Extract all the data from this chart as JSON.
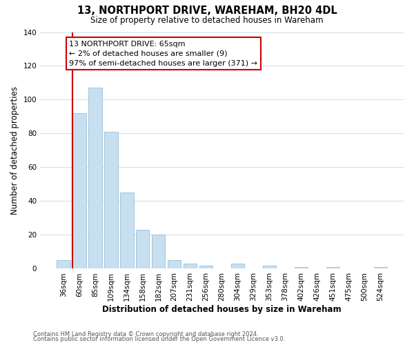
{
  "title": "13, NORTHPORT DRIVE, WAREHAM, BH20 4DL",
  "subtitle": "Size of property relative to detached houses in Wareham",
  "xlabel": "Distribution of detached houses by size in Wareham",
  "ylabel": "Number of detached properties",
  "bar_labels": [
    "36sqm",
    "60sqm",
    "85sqm",
    "109sqm",
    "134sqm",
    "158sqm",
    "182sqm",
    "207sqm",
    "231sqm",
    "256sqm",
    "280sqm",
    "304sqm",
    "329sqm",
    "353sqm",
    "378sqm",
    "402sqm",
    "426sqm",
    "451sqm",
    "475sqm",
    "500sqm",
    "524sqm"
  ],
  "bar_values": [
    5,
    92,
    107,
    81,
    45,
    23,
    20,
    5,
    3,
    2,
    0,
    3,
    0,
    2,
    0,
    1,
    0,
    1,
    0,
    0,
    1
  ],
  "bar_color": "#c8dff0",
  "bar_edge_color": "#a0c4dc",
  "ylim": [
    0,
    140
  ],
  "yticks": [
    0,
    20,
    40,
    60,
    80,
    100,
    120,
    140
  ],
  "vline_color": "#cc0000",
  "annotation_text": "13 NORTHPORT DRIVE: 65sqm\n← 2% of detached houses are smaller (9)\n97% of semi-detached houses are larger (371) →",
  "annotation_box_color": "#ffffff",
  "annotation_box_edge": "#cc0000",
  "footer_line1": "Contains HM Land Registry data © Crown copyright and database right 2024.",
  "footer_line2": "Contains public sector information licensed under the Open Government Licence v3.0.",
  "background_color": "#ffffff",
  "grid_color": "#d0dce8"
}
